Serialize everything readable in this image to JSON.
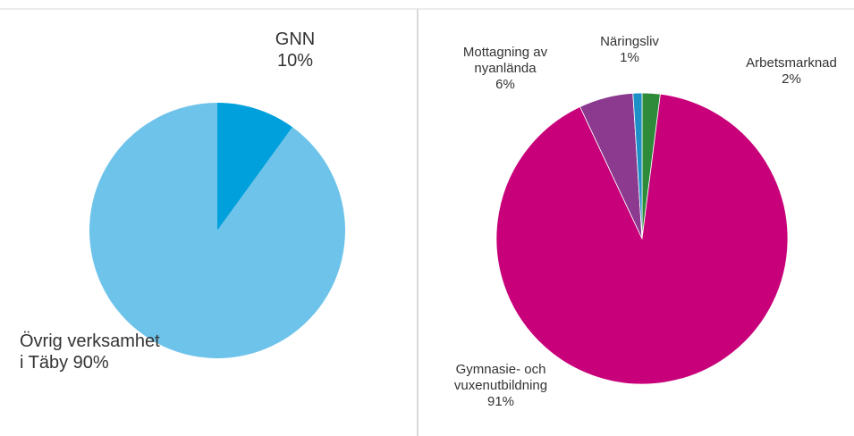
{
  "chart_data": [
    {
      "type": "pie",
      "categories": [
        "GNN",
        "Övrig verksamhet i Täby"
      ],
      "values": [
        10,
        90
      ],
      "value_labels": [
        "10%",
        "90%"
      ],
      "colors": [
        "#00a0dc",
        "#6ec3ea"
      ]
    },
    {
      "type": "pie",
      "categories": [
        "Arbetsmarknad",
        "Gymnasie- och vuxenutbildning",
        "Mottagning av nyanlända",
        "Näringsliv"
      ],
      "values": [
        2,
        91,
        6,
        1
      ],
      "value_labels": [
        "2%",
        "91%",
        "6%",
        "1%"
      ],
      "colors": [
        "#2e8b3a",
        "#c8007a",
        "#8b3a8f",
        "#1e90c8"
      ]
    }
  ]
}
